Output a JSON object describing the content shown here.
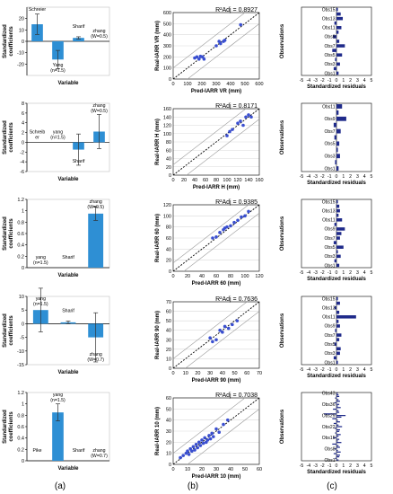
{
  "panel_labels": [
    "(a)",
    "(b)",
    "(c)"
  ],
  "colors": {
    "bar": "#2e8fd4",
    "error": "#333333",
    "point": "#3a4fd0",
    "residual": "#1f2a8a",
    "fit": "#000000",
    "band": "#9a9a9a"
  },
  "chart_data": [
    {
      "panel": "a1",
      "type": "bar",
      "ylabel": "Standardized coefficients",
      "xlabel": "Variable",
      "ylim": [
        -30,
        30
      ],
      "yticks": [
        -20,
        -10,
        0,
        10,
        20
      ],
      "categories": [
        "Schreier",
        "Yang (n=1.5)",
        "Sharif",
        "zhang (W=0.5)"
      ],
      "values": [
        15,
        -16,
        3,
        0
      ],
      "errors": [
        9,
        8,
        1,
        0
      ]
    },
    {
      "panel": "a2",
      "type": "bar",
      "ylabel": "Standardized coefficients",
      "xlabel": "Variable",
      "ylim": [
        -6,
        8
      ],
      "yticks": [
        -6,
        -4,
        -2,
        0,
        2,
        4,
        6,
        8
      ],
      "categories": [
        "Schreib er",
        "yang (n=1.5)",
        "Sharif",
        "zhang (W=0.5)"
      ],
      "values": [
        0,
        0,
        -1.5,
        2.2
      ],
      "errors": [
        0,
        0,
        3.2,
        3.5
      ]
    },
    {
      "panel": "a3",
      "type": "bar",
      "ylabel": "Standardized coefficients",
      "xlabel": "Variable",
      "ylim": [
        0,
        1.2
      ],
      "yticks": [
        0,
        0.2,
        0.4,
        0.6,
        0.8,
        1,
        1.2
      ],
      "categories": [
        "yang (n=1.5)",
        "Sharif",
        "zhang (W=0.5)"
      ],
      "values": [
        0,
        0,
        0.95
      ],
      "errors": [
        0,
        0,
        0.12
      ]
    },
    {
      "panel": "a4",
      "type": "bar",
      "ylabel": "Standardized coefficients",
      "xlabel": "Variable",
      "ylim": [
        -15,
        10
      ],
      "yticks": [
        -15,
        -10,
        -5,
        0,
        5,
        10
      ],
      "categories": [
        "yang (n=1.5)",
        "Sharif",
        "zhang (W=0.7)"
      ],
      "values": [
        5,
        0.5,
        -5
      ],
      "errors": [
        8,
        0.5,
        9
      ]
    },
    {
      "panel": "a5",
      "type": "bar",
      "ylabel": "Standardized coefficients",
      "xlabel": "Variable",
      "ylim": [
        0,
        1.2
      ],
      "yticks": [
        0,
        0.2,
        0.4,
        0.6,
        0.8,
        1,
        1.2
      ],
      "categories": [
        "Pike",
        "yang (n=1.5)",
        "Sharif",
        "zhang (W=0.7)"
      ],
      "values": [
        0,
        0.85,
        0,
        0
      ],
      "errors": [
        0,
        0.15,
        0,
        0
      ]
    },
    {
      "panel": "b1",
      "type": "scatter",
      "r2_label": "R²Adj = 0.8927",
      "xlabel": "Pred-IARR VR (mm)",
      "ylabel": "Real-IARR VR (mm)",
      "xlim": [
        0,
        600
      ],
      "ylim": [
        0,
        600
      ],
      "xticks": [
        0,
        100,
        200,
        300,
        400,
        500,
        600
      ],
      "yticks": [
        0,
        100,
        200,
        300,
        400,
        500,
        600
      ],
      "band": 100,
      "points": [
        [
          150,
          190
        ],
        [
          165,
          200
        ],
        [
          180,
          180
        ],
        [
          190,
          205
        ],
        [
          205,
          200
        ],
        [
          215,
          180
        ],
        [
          300,
          300
        ],
        [
          320,
          340
        ],
        [
          330,
          320
        ],
        [
          350,
          340
        ],
        [
          360,
          350
        ],
        [
          470,
          490
        ]
      ]
    },
    {
      "panel": "b2",
      "type": "scatter",
      "r2_label": "R²Adj = 0.8171",
      "xlabel": "Pred-IARR H (mm)",
      "ylabel": "Real-IARR H (mm)",
      "xlim": [
        0,
        160
      ],
      "ylim": [
        0,
        160
      ],
      "xticks": [
        0,
        20,
        40,
        60,
        80,
        100,
        120,
        140,
        160
      ],
      "yticks": [
        0,
        20,
        40,
        60,
        80,
        100,
        120,
        140,
        160
      ],
      "band": 25,
      "points": [
        [
          100,
          95
        ],
        [
          105,
          105
        ],
        [
          110,
          110
        ],
        [
          120,
          125
        ],
        [
          125,
          130
        ],
        [
          130,
          120
        ],
        [
          135,
          140
        ],
        [
          140,
          145
        ],
        [
          145,
          140
        ]
      ]
    },
    {
      "panel": "b3",
      "type": "scatter",
      "r2_label": "R²Adj = 0.9385",
      "xlabel": "Pred-IARR 60 (mm)",
      "ylabel": "Real-IARR 60 (mm)",
      "xlim": [
        0,
        120
      ],
      "ylim": [
        0,
        120
      ],
      "xticks": [
        0,
        20,
        40,
        60,
        80,
        100,
        120
      ],
      "yticks": [
        0,
        20,
        40,
        60,
        80,
        100,
        120
      ],
      "band": 15,
      "points": [
        [
          55,
          60
        ],
        [
          60,
          62
        ],
        [
          65,
          70
        ],
        [
          70,
          75
        ],
        [
          72,
          78
        ],
        [
          75,
          80
        ],
        [
          80,
          82
        ],
        [
          85,
          88
        ],
        [
          90,
          92
        ],
        [
          95,
          98
        ],
        [
          100,
          100
        ],
        [
          105,
          108
        ]
      ]
    },
    {
      "panel": "b4",
      "type": "scatter",
      "r2_label": "R²Adj = 0.7636",
      "xlabel": "Pred-IARR 90 (mm)",
      "ylabel": "Real-IARR 90 (mm)",
      "xlim": [
        0,
        70
      ],
      "ylim": [
        0,
        70
      ],
      "xticks": [
        0,
        10,
        20,
        30,
        40,
        50,
        60,
        70
      ],
      "yticks": [
        0,
        10,
        20,
        30,
        40,
        50,
        60,
        70
      ],
      "band": 10,
      "points": [
        [
          30,
          32
        ],
        [
          32,
          28
        ],
        [
          35,
          30
        ],
        [
          38,
          40
        ],
        [
          40,
          38
        ],
        [
          42,
          44
        ],
        [
          45,
          42
        ],
        [
          48,
          46
        ],
        [
          52,
          50
        ]
      ]
    },
    {
      "panel": "b5",
      "type": "scatter",
      "r2_label": "R²Adj = 0.7038",
      "xlabel": "Pred-IARR 10 (mm)",
      "ylabel": "Real-IARR 10 (mm)",
      "xlim": [
        0,
        60
      ],
      "ylim": [
        0,
        60
      ],
      "xticks": [
        0,
        10,
        20,
        30,
        40,
        50,
        60
      ],
      "yticks": [
        0,
        10,
        20,
        30,
        40,
        50,
        60
      ],
      "band": 10,
      "points": [
        [
          5,
          6
        ],
        [
          7,
          8
        ],
        [
          9,
          10
        ],
        [
          10,
          12
        ],
        [
          11,
          9
        ],
        [
          12,
          14
        ],
        [
          13,
          12
        ],
        [
          14,
          16
        ],
        [
          15,
          13
        ],
        [
          16,
          18
        ],
        [
          17,
          15
        ],
        [
          18,
          20
        ],
        [
          19,
          17
        ],
        [
          20,
          22
        ],
        [
          21,
          19
        ],
        [
          22,
          24
        ],
        [
          23,
          20
        ],
        [
          24,
          22
        ],
        [
          25,
          26
        ],
        [
          26,
          23
        ],
        [
          27,
          28
        ],
        [
          28,
          25
        ],
        [
          30,
          32
        ],
        [
          32,
          29
        ],
        [
          35,
          36
        ],
        [
          38,
          40
        ]
      ]
    },
    {
      "panel": "c1",
      "type": "bar",
      "orientation": "horizontal",
      "xlabel": "Standardized residuals",
      "ylabel": "Observations",
      "xlim": [
        -5,
        5
      ],
      "xticks": [
        -5,
        -4,
        -3,
        -2,
        -1,
        0,
        1,
        2,
        3,
        4,
        5
      ],
      "categories": [
        "Obs1",
        "Obs2",
        "Obs3",
        "Obs4",
        "Obs5",
        "Obs6",
        "Obs7",
        "Obs8",
        "Obs9",
        "Obs10",
        "Obs11",
        "Obs12",
        "Obs13",
        "Obs14",
        "Obs15"
      ],
      "tick_labels": [
        "Obs1",
        "Obs3",
        "Obs5",
        "Obs7",
        "Obs9",
        "Obs11",
        "Obs13",
        "Obs15"
      ],
      "values": [
        0.3,
        -0.4,
        0.5,
        -0.2,
        0.8,
        -0.6,
        1.2,
        0.4,
        -0.5,
        0.3,
        0.7,
        -0.3,
        0.9,
        0.6,
        0.2
      ]
    },
    {
      "panel": "c2",
      "type": "bar",
      "orientation": "horizontal",
      "xlabel": "Standardized residuals",
      "ylabel": "Observations",
      "xlim": [
        -5,
        5
      ],
      "xticks": [
        -5,
        -4,
        -3,
        -2,
        -1,
        0,
        1,
        2,
        3,
        4,
        5
      ],
      "categories": [
        "Obs1",
        "Obs2",
        "Obs3",
        "Obs4",
        "Obs5",
        "Obs6",
        "Obs7",
        "Obs8",
        "Obs9",
        "Obs10",
        "Obs11"
      ],
      "tick_labels": [
        "Obs1",
        "Obs3",
        "Obs5",
        "Obs7",
        "Obs9",
        "Obs11"
      ],
      "values": [
        0.3,
        -0.2,
        0.5,
        0.2,
        0.4,
        -0.3,
        0.6,
        -0.4,
        1.4,
        0.3,
        0.8
      ]
    },
    {
      "panel": "c3",
      "type": "bar",
      "orientation": "horizontal",
      "xlabel": "Standardized residuals",
      "ylabel": "Observations",
      "xlim": [
        -5,
        5
      ],
      "xticks": [
        -5,
        -4,
        -3,
        -2,
        -1,
        0,
        1,
        2,
        3,
        4,
        5
      ],
      "categories": [
        "Obs1",
        "Obs2",
        "Obs3",
        "Obs4",
        "Obs5",
        "Obs6",
        "Obs7",
        "Obs8",
        "Obs9",
        "Obs10",
        "Obs11",
        "Obs12",
        "Obs13",
        "Obs14",
        "Obs15"
      ],
      "tick_labels": [
        "Obs1",
        "Obs3",
        "Obs5",
        "Obs7",
        "Obs9",
        "Obs11",
        "Obs13",
        "Obs15"
      ],
      "values": [
        0.4,
        -0.3,
        0.6,
        0.2,
        1.0,
        -0.4,
        0.5,
        0.7,
        1.2,
        -0.3,
        0.8,
        0.3,
        0.5,
        0.4,
        0.2
      ]
    },
    {
      "panel": "c4",
      "type": "bar",
      "orientation": "horizontal",
      "xlabel": "Standardized residuals",
      "ylabel": "Observations",
      "xlim": [
        -5,
        5
      ],
      "xticks": [
        -5,
        -4,
        -3,
        -2,
        -1,
        0,
        1,
        2,
        3,
        4,
        5
      ],
      "categories": [
        "Obs1",
        "Obs2",
        "Obs3",
        "Obs4",
        "Obs5",
        "Obs6",
        "Obs7",
        "Obs8",
        "Obs9",
        "Obs10",
        "Obs11",
        "Obs12",
        "Obs13",
        "Obs14",
        "Obs15"
      ],
      "tick_labels": [
        "Obs1",
        "Obs3",
        "Obs5",
        "Obs7",
        "Obs9",
        "Obs11",
        "Obs13",
        "Obs15"
      ],
      "values": [
        0.2,
        -0.4,
        0.5,
        0.6,
        -0.3,
        0.4,
        0.7,
        -0.2,
        0.5,
        0.3,
        2.8,
        0.4,
        -0.3,
        0.5,
        0.2
      ]
    },
    {
      "panel": "c5",
      "type": "bar",
      "orientation": "horizontal",
      "xlabel": "Standardized residuals",
      "ylabel": "Observations",
      "xlim": [
        -5,
        5
      ],
      "xticks": [
        -5,
        -4,
        -3,
        -2,
        -1,
        0,
        1,
        2,
        3,
        4,
        5
      ],
      "categories": [
        "Obs1",
        "Obs2",
        "Obs3",
        "Obs4",
        "Obs5",
        "Obs6",
        "Obs7",
        "Obs8",
        "Obs9",
        "Obs10",
        "Obs11",
        "Obs12",
        "Obs13",
        "Obs14",
        "Obs15",
        "Obs16",
        "Obs17",
        "Obs18",
        "Obs19",
        "Obs20",
        "Obs21",
        "Obs22",
        "Obs23",
        "Obs24",
        "Obs25",
        "Obs26",
        "Obs27",
        "Obs28",
        "Obs29",
        "Obs30",
        "Obs31",
        "Obs32",
        "Obs33",
        "Obs34",
        "Obs35",
        "Obs36",
        "Obs37",
        "Obs38",
        "Obs39",
        "Obs40",
        "Obs41",
        "Obs42",
        "Obs43"
      ],
      "tick_labels": [
        "Obs1",
        "Obs8",
        "Obs15",
        "Obs22",
        "Obs29",
        "Obs36",
        "Obs43"
      ],
      "values": [
        0.3,
        -0.2,
        0.4,
        0.5,
        -0.4,
        0.6,
        0.2,
        -0.3,
        0.5,
        0.3,
        -0.6,
        0.7,
        0.2,
        0.4,
        -0.5,
        0.3,
        0.6,
        -0.2,
        0.4,
        0.5,
        -0.3,
        0.8,
        0.3,
        -0.4,
        0.5,
        0.2,
        -0.6,
        0.7,
        1.3,
        -1.8,
        0.4,
        0.3,
        -0.5,
        0.6,
        0.2,
        0.4,
        -0.3,
        0.5,
        0.3,
        -0.2,
        0.4,
        0.3,
        0.2
      ]
    }
  ]
}
